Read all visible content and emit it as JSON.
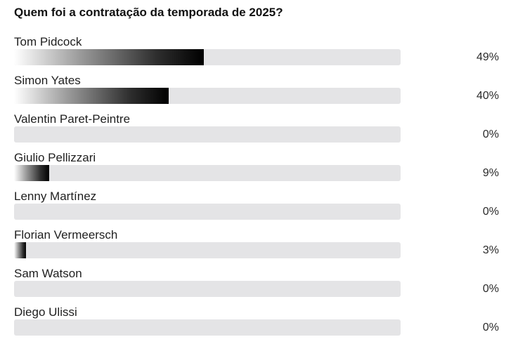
{
  "poll": {
    "question": "Quem foi a contratação da temporada de 2025?",
    "options": [
      {
        "label": "Tom Pidcock",
        "percent_text": "49%",
        "percent": 49
      },
      {
        "label": "Simon Yates",
        "percent_text": "40%",
        "percent": 40
      },
      {
        "label": "Valentin Paret-Peintre",
        "percent_text": "0%",
        "percent": 0
      },
      {
        "label": "Giulio Pellizzari",
        "percent_text": "9%",
        "percent": 9
      },
      {
        "label": "Lenny Martínez",
        "percent_text": "0%",
        "percent": 0
      },
      {
        "label": "Florian Vermeersch",
        "percent_text": "3%",
        "percent": 3
      },
      {
        "label": "Sam Watson",
        "percent_text": "0%",
        "percent": 0
      },
      {
        "label": "Diego Ulissi",
        "percent_text": "0%",
        "percent": 0
      }
    ]
  }
}
